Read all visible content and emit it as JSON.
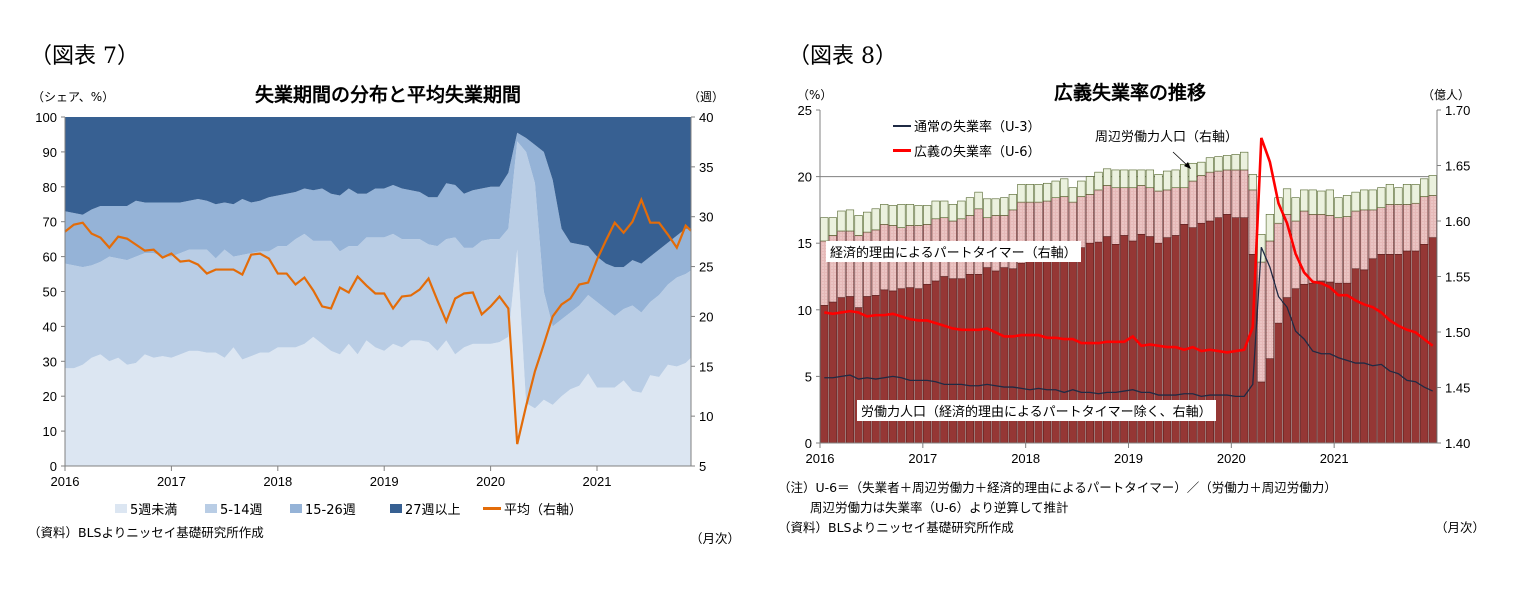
{
  "left": {
    "figure_label": "（図表 7）",
    "title": "失業期間の分布と平均失業期間",
    "left_unit": "（シェア、%）",
    "right_unit": "（週）",
    "source": "（資料）BLSよりニッセイ基礎研究所作成",
    "frequency": "（月次）"
  },
  "right": {
    "figure_label": "（図表 8）",
    "title": "広義失業率の推移",
    "left_unit": "（%）",
    "right_unit": "（億人）",
    "note1": "（注）U-6＝（失業者＋周辺労働力＋経済的理由によるパートタイマー）／（労働力＋周辺労働力）",
    "note2": "周辺労働力は失業率（U-6）より逆算して推計",
    "source": "（資料）BLSよりニッセイ基礎研究所作成",
    "frequency": "（月次）",
    "annotation_part_time": "経済的理由によるパートタイマー（右軸）",
    "annotation_labor_force": "労働力人口（経済的理由によるパートタイマー除く、右軸）",
    "annotation_marginal": "周辺労働力人口（右軸）"
  },
  "chart_data": [
    {
      "type": "area",
      "stacked": true,
      "title": "失業期間の分布と平均失業期間",
      "x_start": "2016-01",
      "x_end": "2021-12",
      "x_tick_labels": [
        "2016",
        "2017",
        "2018",
        "2019",
        "2020",
        "2021"
      ],
      "ylim": [
        0,
        100
      ],
      "y_ticks": [
        "0",
        "10",
        "20",
        "30",
        "40",
        "50",
        "60",
        "70",
        "80",
        "90",
        "100"
      ],
      "y2lim": [
        5,
        40
      ],
      "y2_ticks": [
        "5",
        "10",
        "15",
        "20",
        "25",
        "30",
        "35",
        "40"
      ],
      "legend_position": "bottom",
      "series": [
        {
          "name": "5週未満",
          "color": "#dce6f2",
          "axis": "left",
          "values": [
            28,
            28,
            29,
            31,
            32,
            30,
            31,
            29,
            29.5,
            32,
            31,
            31.5,
            31,
            32,
            33,
            33,
            32.5,
            32.5,
            31,
            34,
            30.5,
            31.5,
            32.5,
            32.5,
            34,
            34,
            34,
            35,
            37,
            35,
            33,
            32,
            35,
            32,
            36,
            34,
            33,
            35,
            34,
            36,
            36,
            35.5,
            33,
            36,
            32,
            34,
            35,
            35,
            35,
            35.5,
            37,
            62,
            18,
            16.5,
            19,
            17.5,
            20,
            22,
            23,
            26.5,
            22.5,
            22.5,
            22.5,
            24.5,
            21.5,
            21,
            26,
            25.5,
            29,
            28.5,
            29.5,
            31
          ]
        },
        {
          "name": "5-14週",
          "color": "#b9cde5",
          "axis": "left",
          "values": [
            30,
            29.5,
            28,
            26.5,
            26.5,
            30,
            28.5,
            30,
            30.5,
            29,
            30,
            28.5,
            29,
            29,
            29,
            29,
            29.5,
            27,
            31,
            26,
            30,
            29.5,
            29,
            29,
            29,
            29,
            31,
            31.5,
            27.5,
            29.5,
            31.5,
            29.5,
            28,
            31,
            29.5,
            31.5,
            32.5,
            31.5,
            31,
            29,
            29,
            28,
            30,
            29,
            33.5,
            28.5,
            27.5,
            29.5,
            30,
            29.5,
            31,
            31,
            72,
            64.5,
            31,
            22.5,
            22,
            22,
            23,
            22.5,
            24.5,
            22.5,
            20.5,
            20.5,
            24.5,
            23,
            21,
            23.5,
            23,
            25.5,
            25.5,
            25
          ]
        },
        {
          "name": "15-26週",
          "color": "#95b3d7",
          "axis": "left",
          "values": [
            15,
            15,
            15,
            16,
            16,
            14.5,
            15,
            15.5,
            16,
            14.5,
            14.5,
            15.5,
            15.5,
            14.5,
            14,
            14.5,
            14,
            15.5,
            13.5,
            15,
            16,
            14.5,
            14.5,
            15.5,
            14.5,
            15,
            13.5,
            13,
            14.5,
            15,
            13.5,
            16,
            16.5,
            15,
            12.5,
            14,
            14,
            14,
            14.5,
            14,
            13.5,
            13.5,
            14,
            16,
            15,
            15.5,
            16.5,
            15,
            15,
            15,
            16,
            2.5,
            4,
            11,
            40,
            42,
            26,
            20,
            17.5,
            14,
            13,
            13,
            14,
            12,
            13,
            14,
            13,
            13,
            12,
            12,
            13,
            12
          ]
        },
        {
          "name": "27週以上",
          "color": "#376092",
          "axis": "left",
          "values": [
            27,
            27.5,
            28,
            26.5,
            25.5,
            25.5,
            25.5,
            25.5,
            24,
            24.5,
            24.5,
            24.5,
            24.5,
            24.5,
            24,
            23.5,
            24,
            25,
            24.5,
            25,
            23.5,
            24.5,
            24,
            23,
            22.5,
            22,
            21.5,
            20.5,
            21,
            20.5,
            22,
            22.5,
            20.5,
            22,
            22,
            20.5,
            20.5,
            19.5,
            20.5,
            21,
            21.5,
            23,
            23,
            19,
            19.5,
            22,
            21,
            20.5,
            20,
            20,
            16,
            4.5,
            6,
            8,
            10,
            18,
            32,
            36,
            36.5,
            37,
            40,
            42,
            43,
            43,
            41,
            42,
            40,
            38,
            36,
            34,
            32,
            32
          ]
        },
        {
          "name": "平均（右軸）",
          "type": "line",
          "color": "#e36c09",
          "axis": "right",
          "values": [
            28.5,
            29.2,
            29.4,
            28.3,
            27.9,
            26.9,
            28.0,
            27.8,
            27.2,
            26.6,
            26.7,
            25.9,
            26.3,
            25.5,
            25.6,
            25.2,
            24.3,
            24.7,
            24.7,
            24.7,
            24.2,
            26.2,
            26.3,
            25.8,
            24.3,
            24.3,
            23.2,
            23.9,
            22.6,
            21.0,
            20.8,
            22.9,
            22.4,
            24.0,
            23.1,
            22.3,
            22.3,
            20.8,
            22.0,
            22.1,
            22.7,
            23.8,
            21.6,
            19.5,
            21.8,
            22.3,
            22.4,
            20.2,
            21.0,
            22.0,
            20.8,
            7.2,
            11.0,
            14.5,
            17.2,
            20.0,
            21.2,
            21.8,
            23.2,
            23.4,
            25.7,
            27.6,
            29.4,
            28.4,
            29.5,
            31.7,
            29.4,
            29.4,
            28.2,
            26.9,
            29.1,
            28.6
          ]
        }
      ]
    },
    {
      "type": "bar",
      "stacked": true,
      "title": "広義失業率の推移",
      "x_start": "2016-01",
      "x_end": "2021-12",
      "x_tick_labels": [
        "2016",
        "2017",
        "2018",
        "2019",
        "2020",
        "2021"
      ],
      "ylim": [
        0,
        25
      ],
      "y_ticks": [
        "0",
        "5",
        "10",
        "15",
        "20",
        "25"
      ],
      "y2lim": [
        1.4,
        1.7
      ],
      "y2_ticks": [
        "1.40",
        "1.45",
        "1.50",
        "1.55",
        "1.60",
        "1.65",
        "1.70"
      ],
      "gridlines": [
        20
      ],
      "series": [
        {
          "name": "労働力人口（経済的理由によるパートタイマー除く、右軸）",
          "color": "#953735",
          "axis": "right",
          "values": [
            1.524,
            1.527,
            1.531,
            1.532,
            1.522,
            1.532,
            1.533,
            1.538,
            1.537,
            1.539,
            1.54,
            1.539,
            1.543,
            1.546,
            1.55,
            1.548,
            1.548,
            1.552,
            1.552,
            1.558,
            1.555,
            1.558,
            1.557,
            1.562,
            1.564,
            1.567,
            1.568,
            1.57,
            1.572,
            1.573,
            1.576,
            1.58,
            1.581,
            1.586,
            1.579,
            1.587,
            1.582,
            1.588,
            1.586,
            1.58,
            1.585,
            1.587,
            1.597,
            1.594,
            1.598,
            1.6,
            1.603,
            1.606,
            1.603,
            1.603,
            1.57,
            1.455,
            1.476,
            1.508,
            1.531,
            1.539,
            1.543,
            1.544,
            1.546,
            1.545,
            1.544,
            1.544,
            1.557,
            1.556,
            1.566,
            1.57,
            1.57,
            1.57,
            1.573,
            1.573,
            1.579,
            1.585
          ]
        },
        {
          "name": "経済的理由によるパートタイマー（右軸）",
          "color": "#e6b9b8",
          "axis": "right",
          "values": [
            0.058,
            0.06,
            0.06,
            0.059,
            0.065,
            0.058,
            0.059,
            0.059,
            0.059,
            0.055,
            0.056,
            0.057,
            0.054,
            0.056,
            0.053,
            0.052,
            0.054,
            0.053,
            0.059,
            0.045,
            0.05,
            0.047,
            0.053,
            0.055,
            0.053,
            0.05,
            0.05,
            0.051,
            0.05,
            0.044,
            0.046,
            0.044,
            0.047,
            0.046,
            0.051,
            0.043,
            0.048,
            0.044,
            0.044,
            0.047,
            0.043,
            0.043,
            0.033,
            0.042,
            0.043,
            0.044,
            0.042,
            0.04,
            0.043,
            0.043,
            0.058,
            0.108,
            0.106,
            0.09,
            0.075,
            0.061,
            0.066,
            0.062,
            0.06,
            0.06,
            0.059,
            0.06,
            0.052,
            0.054,
            0.044,
            0.042,
            0.045,
            0.045,
            0.042,
            0.043,
            0.043,
            0.038
          ]
        },
        {
          "name": "周辺労働力人口（右軸）",
          "color": "#ebf1de",
          "axis": "right",
          "values": [
            0.021,
            0.016,
            0.018,
            0.019,
            0.018,
            0.018,
            0.019,
            0.018,
            0.018,
            0.021,
            0.019,
            0.018,
            0.017,
            0.016,
            0.015,
            0.015,
            0.016,
            0.016,
            0.015,
            0.017,
            0.015,
            0.016,
            0.014,
            0.016,
            0.016,
            0.016,
            0.016,
            0.015,
            0.016,
            0.013,
            0.014,
            0.016,
            0.016,
            0.015,
            0.016,
            0.016,
            0.016,
            0.014,
            0.016,
            0.015,
            0.017,
            0.016,
            0.021,
            0.016,
            0.012,
            0.013,
            0.013,
            0.013,
            0.014,
            0.016,
            0.014,
            0.025,
            0.024,
            0.023,
            0.023,
            0.021,
            0.019,
            0.022,
            0.021,
            0.023,
            0.018,
            0.019,
            0.017,
            0.018,
            0.018,
            0.018,
            0.018,
            0.015,
            0.018,
            0.017,
            0.016,
            0.018
          ]
        },
        {
          "name": "通常の失業率（U-3）",
          "type": "line",
          "color": "#1f2a44",
          "axis": "left",
          "values": [
            4.9,
            4.9,
            5.0,
            5.1,
            4.8,
            4.9,
            4.8,
            4.9,
            5.0,
            4.9,
            4.7,
            4.7,
            4.7,
            4.6,
            4.4,
            4.4,
            4.4,
            4.3,
            4.3,
            4.4,
            4.3,
            4.2,
            4.2,
            4.1,
            4.0,
            4.1,
            4.0,
            4.0,
            3.8,
            4.0,
            3.8,
            3.8,
            3.7,
            3.8,
            3.8,
            3.9,
            4.0,
            3.8,
            3.8,
            3.6,
            3.6,
            3.6,
            3.7,
            3.7,
            3.5,
            3.6,
            3.6,
            3.6,
            3.5,
            3.5,
            4.4,
            14.7,
            13.2,
            11.0,
            10.2,
            8.4,
            7.8,
            6.9,
            6.7,
            6.7,
            6.4,
            6.2,
            6.0,
            6.0,
            5.8,
            5.9,
            5.4,
            5.2,
            4.7,
            4.6,
            4.2,
            3.9
          ]
        },
        {
          "name": "広義の失業率（U-6）",
          "type": "line",
          "color": "#ff0000",
          "axis": "left",
          "values": [
            9.8,
            9.7,
            9.8,
            9.9,
            9.8,
            9.5,
            9.6,
            9.6,
            9.7,
            9.5,
            9.3,
            9.2,
            9.2,
            9.0,
            8.8,
            8.6,
            8.5,
            8.5,
            8.5,
            8.6,
            8.3,
            8.0,
            8.0,
            8.1,
            8.1,
            8.1,
            7.9,
            7.9,
            7.8,
            7.8,
            7.5,
            7.5,
            7.5,
            7.6,
            7.6,
            7.6,
            8.0,
            7.3,
            7.4,
            7.3,
            7.2,
            7.2,
            7.0,
            7.2,
            6.9,
            7.0,
            6.9,
            6.8,
            6.9,
            7.0,
            8.7,
            22.9,
            21.1,
            18.0,
            16.5,
            14.2,
            12.8,
            12.1,
            12.0,
            11.7,
            11.1,
            11.1,
            10.7,
            10.4,
            10.2,
            9.8,
            9.2,
            8.8,
            8.5,
            8.3,
            7.8,
            7.3
          ]
        }
      ]
    }
  ]
}
